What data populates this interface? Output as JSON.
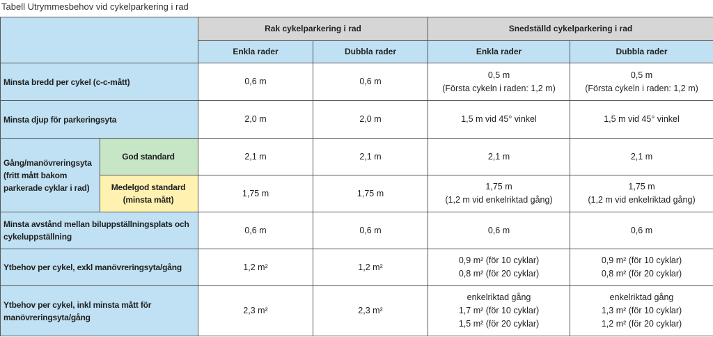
{
  "caption": "Tabell Utrymmesbehov vid cykelparkering i rad",
  "table": {
    "group_headers": [
      "Rak cykelparkering i rad",
      "Snedställd cykelparkering i rad"
    ],
    "column_headers": [
      "Enkla rader",
      "Dubbla rader",
      "Enkla rader",
      "Dubbla rader"
    ],
    "rows": [
      {
        "label": "Minsta bredd per cykel (c-c-mått)",
        "cells": [
          [
            "0,6 m"
          ],
          [
            "0,6 m"
          ],
          [
            "0,5 m",
            "(Första cykeln i raden: 1,2 m)"
          ],
          [
            "0,5 m",
            "(Första cykeln i raden: 1,2 m)"
          ]
        ]
      },
      {
        "label": "Minsta djup för parkeringsyta",
        "cells": [
          [
            "2,0 m"
          ],
          [
            "2,0 m"
          ],
          [
            "1,5 m vid 45° vinkel"
          ],
          [
            "1,5 m vid 45° vinkel"
          ]
        ]
      },
      {
        "label": "Gång/manövreringsyta (fritt mått bakom parkerade cyklar i rad)",
        "subrows": [
          {
            "label": "God standard",
            "cells": [
              [
                "2,1 m"
              ],
              [
                "2,1 m"
              ],
              [
                "2,1 m"
              ],
              [
                "2,1 m"
              ]
            ]
          },
          {
            "label": "Medelgod standard (minsta mått)",
            "cells": [
              [
                "1,75 m"
              ],
              [
                "1,75 m"
              ],
              [
                "1,75 m",
                "(1,2 m vid enkelriktad gång)"
              ],
              [
                "1,75 m",
                "(1,2 m vid enkelriktad gång)"
              ]
            ]
          }
        ]
      },
      {
        "label": "Minsta avstånd mellan biluppställningsplats och cykeluppställning",
        "cells": [
          [
            "0,6 m"
          ],
          [
            "0,6 m"
          ],
          [
            "0,6 m"
          ],
          [
            "0,6 m"
          ]
        ]
      },
      {
        "label": "Ytbehov per cykel, exkl manövreringsyta/gång",
        "cells": [
          [
            "1,2 m²"
          ],
          [
            "1,2 m²"
          ],
          [
            "0,9 m² (för 10 cyklar)",
            "0,8 m² (för 20 cyklar)"
          ],
          [
            "0,9 m² (för 10 cyklar)",
            "0,8 m² (för 20 cyklar)"
          ]
        ]
      },
      {
        "label": "Ytbehov per cykel, inkl minsta mått för manövreringsyta/gång",
        "cells": [
          [
            "2,3 m²"
          ],
          [
            "2,3 m²"
          ],
          [
            "enkelriktad gång",
            "1,7 m² (för 10 cyklar)",
            "1,5 m² (för 20 cyklar)"
          ],
          [
            "enkelriktad gång",
            "1,3 m² (för 10 cyklar)",
            "1,2 m² (för 20 cyklar)"
          ]
        ]
      }
    ]
  }
}
